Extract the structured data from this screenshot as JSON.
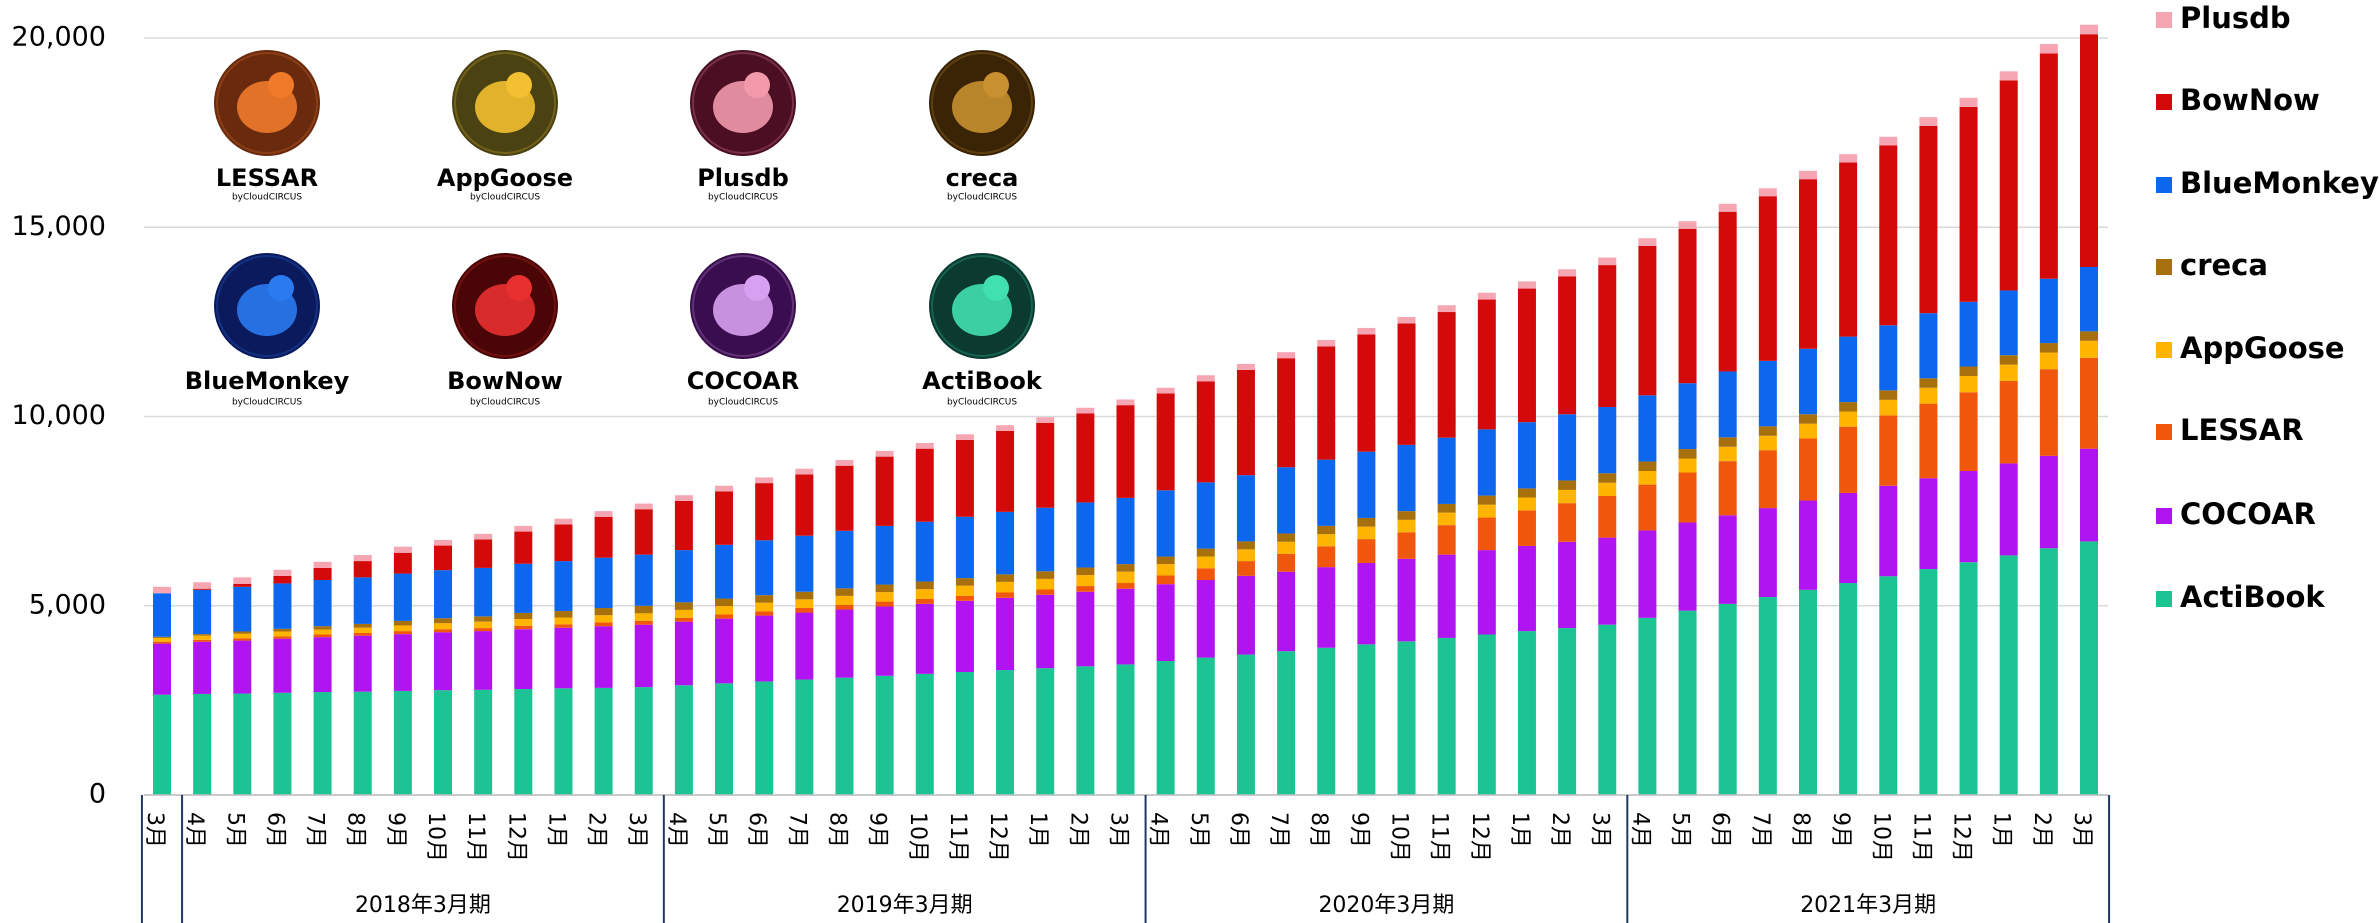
{
  "chart_data": {
    "type": "stacked_bar",
    "categories": [
      "3月",
      "4月",
      "5月",
      "6月",
      "7月",
      "8月",
      "9月",
      "10月",
      "11月",
      "12月",
      "1月",
      "2月",
      "3月",
      "4月",
      "5月",
      "6月",
      "7月",
      "8月",
      "9月",
      "10月",
      "11月",
      "12月",
      "1月",
      "2月",
      "3月",
      "4月",
      "5月",
      "6月",
      "7月",
      "8月",
      "9月",
      "10月",
      "11月",
      "12月",
      "1月",
      "2月",
      "3月",
      "4月",
      "5月",
      "6月",
      "7月",
      "8月",
      "9月",
      "10月",
      "11月",
      "12月",
      "1月",
      "2月",
      "3月"
    ],
    "groups": [
      null,
      "2018年3月期",
      "2019年3月期",
      "2020年3月期",
      "2021年3月期"
    ],
    "ylim": [
      0,
      20000
    ],
    "yticks": [
      0,
      {
        "value": 5000,
        "label": "5,000"
      },
      {
        "value": 10000,
        "label": "10,000"
      },
      {
        "value": 15000,
        "label": "15,000"
      },
      {
        "value": 20000,
        "label": "20,000"
      }
    ],
    "grid": true,
    "legend": "right",
    "series": [
      {
        "name": "ActiBook",
        "color": "#1cc494",
        "values": [
          2650,
          2670,
          2680,
          2700,
          2720,
          2730,
          2750,
          2770,
          2780,
          2800,
          2820,
          2830,
          2850,
          2900,
          2950,
          3000,
          3050,
          3100,
          3150,
          3200,
          3250,
          3300,
          3350,
          3400,
          3450,
          3540,
          3630,
          3710,
          3800,
          3890,
          3980,
          4060,
          4150,
          4240,
          4330,
          4410,
          4500,
          4680,
          4870,
          5050,
          5230,
          5420,
          5600,
          5780,
          5970,
          6150,
          6330,
          6520,
          6700
        ]
      },
      {
        "name": "COCOAR",
        "color": "#b014f0",
        "values": [
          1350,
          1380,
          1400,
          1430,
          1450,
          1480,
          1500,
          1530,
          1550,
          1580,
          1600,
          1630,
          1650,
          1680,
          1710,
          1740,
          1770,
          1800,
          1830,
          1850,
          1880,
          1910,
          1940,
          1970,
          2000,
          2030,
          2050,
          2080,
          2100,
          2130,
          2150,
          2180,
          2200,
          2230,
          2250,
          2280,
          2300,
          2310,
          2330,
          2340,
          2350,
          2360,
          2380,
          2390,
          2400,
          2410,
          2430,
          2440,
          2450
        ]
      },
      {
        "name": "LESSAR",
        "color": "#f0560c",
        "values": [
          50,
          50,
          60,
          60,
          70,
          70,
          80,
          80,
          80,
          90,
          90,
          100,
          100,
          100,
          110,
          110,
          120,
          120,
          130,
          130,
          130,
          140,
          140,
          150,
          150,
          230,
          310,
          390,
          470,
          550,
          630,
          700,
          780,
          860,
          940,
          1020,
          1100,
          1210,
          1320,
          1430,
          1530,
          1640,
          1750,
          1860,
          1970,
          2080,
          2180,
          2290,
          2400
        ]
      },
      {
        "name": "AppGoose",
        "color": "#ffb400",
        "values": [
          100,
          110,
          120,
          130,
          130,
          140,
          150,
          160,
          170,
          180,
          180,
          190,
          200,
          210,
          220,
          230,
          230,
          240,
          250,
          260,
          270,
          280,
          280,
          290,
          300,
          300,
          310,
          310,
          320,
          320,
          330,
          330,
          330,
          340,
          340,
          350,
          350,
          360,
          370,
          380,
          380,
          390,
          400,
          410,
          420,
          430,
          430,
          440,
          450
        ]
      },
      {
        "name": "creca",
        "color": "#a8700c",
        "values": [
          30,
          40,
          60,
          70,
          90,
          100,
          120,
          130,
          140,
          160,
          170,
          190,
          200,
          200,
          200,
          200,
          200,
          200,
          200,
          200,
          200,
          200,
          200,
          200,
          200,
          200,
          210,
          210,
          220,
          220,
          230,
          230,
          230,
          240,
          240,
          250,
          250,
          250,
          250,
          250,
          250,
          250,
          250,
          250,
          250,
          250,
          250,
          250,
          250
        ]
      },
      {
        "name": "BlueMonkey",
        "color": "#0c66ee",
        "values": [
          1150,
          1170,
          1180,
          1200,
          1220,
          1230,
          1250,
          1270,
          1280,
          1300,
          1320,
          1330,
          1350,
          1380,
          1420,
          1450,
          1480,
          1520,
          1550,
          1580,
          1620,
          1650,
          1680,
          1720,
          1750,
          1750,
          1750,
          1750,
          1750,
          1750,
          1750,
          1750,
          1750,
          1750,
          1750,
          1750,
          1750,
          1750,
          1740,
          1740,
          1730,
          1730,
          1730,
          1720,
          1720,
          1710,
          1710,
          1700,
          1700
        ]
      },
      {
        "name": "BowNow",
        "color": "#d40a0a",
        "values": [
          0,
          30,
          80,
          200,
          320,
          430,
          550,
          650,
          750,
          850,
          970,
          1080,
          1200,
          1300,
          1410,
          1510,
          1620,
          1720,
          1830,
          1930,
          2030,
          2140,
          2240,
          2350,
          2450,
          2560,
          2670,
          2780,
          2880,
          2990,
          3100,
          3210,
          3320,
          3430,
          3530,
          3640,
          3750,
          3950,
          4080,
          4220,
          4350,
          4480,
          4600,
          4750,
          4950,
          5150,
          5550,
          5950,
          6150
        ]
      },
      {
        "name": "Plusdb",
        "color": "#f6a6b2",
        "values": [
          170,
          170,
          170,
          160,
          160,
          160,
          160,
          150,
          150,
          150,
          150,
          150,
          150,
          150,
          150,
          150,
          150,
          150,
          150,
          150,
          150,
          150,
          150,
          150,
          150,
          150,
          160,
          160,
          160,
          170,
          170,
          170,
          180,
          180,
          190,
          190,
          200,
          200,
          200,
          210,
          210,
          220,
          220,
          230,
          230,
          240,
          240,
          250,
          250
        ]
      }
    ],
    "logos": [
      {
        "name": "LESSAR",
        "byline": "byCloudCIRCUS",
        "color": "#6a2a0e",
        "accent": "#f07a2a"
      },
      {
        "name": "AppGoose",
        "byline": "byCloudCIRCUS",
        "color": "#4a4212",
        "accent": "#f2c030"
      },
      {
        "name": "Plusdb",
        "byline": "byCloudCIRCUS",
        "color": "#4c0e22",
        "accent": "#f29aac"
      },
      {
        "name": "creca",
        "byline": "byCloudCIRCUS",
        "color": "#3a2406",
        "accent": "#c89030"
      },
      {
        "name": "BlueMonkey",
        "byline": "byCloudCIRCUS",
        "color": "#0a1a5c",
        "accent": "#2a7af0"
      },
      {
        "name": "BowNow",
        "byline": "byCloudCIRCUS",
        "color": "#4a0606",
        "accent": "#e83030"
      },
      {
        "name": "COCOAR",
        "byline": "byCloudCIRCUS",
        "color": "#3a0e4e",
        "accent": "#d8a0f0"
      },
      {
        "name": "ActiBook",
        "byline": "byCloudCIRCUS",
        "color": "#0a3a30",
        "accent": "#40e0b0"
      }
    ]
  }
}
